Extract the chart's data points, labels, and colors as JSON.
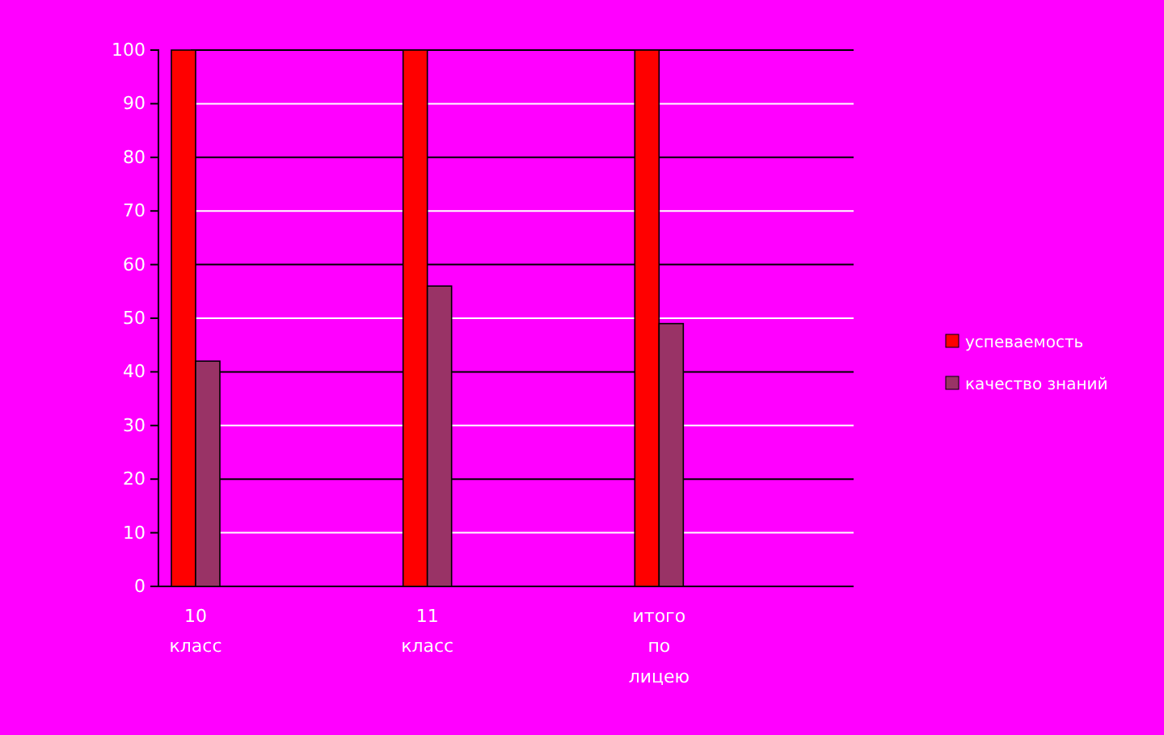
{
  "chart_data": {
    "type": "bar",
    "categories": [
      "10 класс",
      "11 класс",
      "итого по лицею"
    ],
    "series": [
      {
        "name": "успеваемость",
        "color": "#ff0000",
        "values": [
          100,
          100,
          100
        ]
      },
      {
        "name": "качество знаний",
        "color": "#993366",
        "values": [
          42,
          56,
          49
        ]
      }
    ],
    "ylim": [
      0,
      100
    ],
    "yticks": [
      0,
      10,
      20,
      30,
      40,
      50,
      60,
      70,
      80,
      90,
      100
    ],
    "grid": "y",
    "legend": "right"
  }
}
